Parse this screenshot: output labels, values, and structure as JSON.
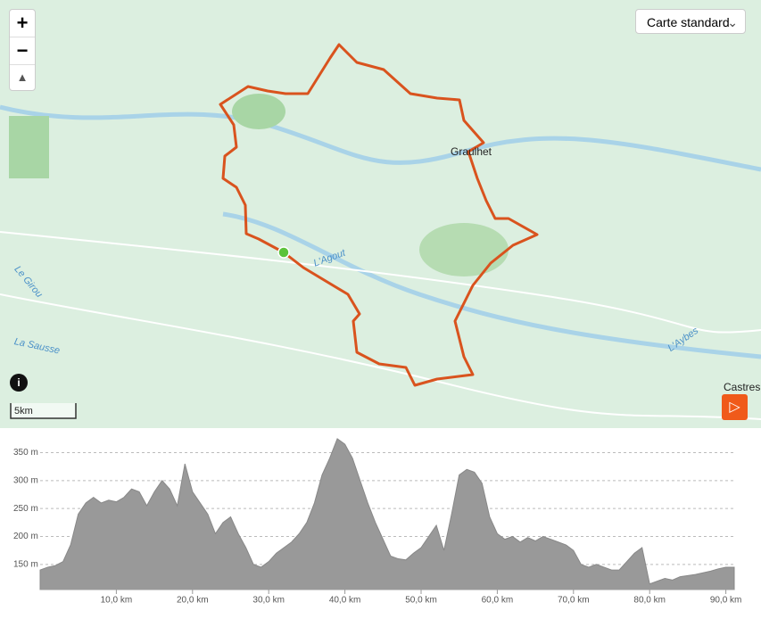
{
  "map": {
    "layer_selector": "Carte standard",
    "zoom_in": "+",
    "zoom_out": "−",
    "scale": "5km",
    "places": [
      "Graulhet",
      "Castres"
    ],
    "rivers": [
      "Le Girou",
      "La Sausse",
      "L'Agout",
      "L'Aybes"
    ]
  },
  "chart_data": {
    "type": "area",
    "color": "#999999",
    "x": [
      0,
      1,
      2,
      3,
      4,
      5,
      6,
      7,
      8,
      9,
      10,
      11,
      12,
      13,
      14,
      15,
      16,
      17,
      18,
      19,
      20,
      21,
      22,
      23,
      24,
      25,
      26,
      27,
      28,
      29,
      30,
      31,
      32,
      33,
      34,
      35,
      36,
      37,
      38,
      39,
      40,
      41,
      42,
      43,
      44,
      45,
      46,
      47,
      48,
      49,
      50,
      51,
      52,
      53,
      54,
      55,
      56,
      57,
      58,
      59,
      60,
      61,
      62,
      63,
      64,
      65,
      66,
      67,
      68,
      69,
      70,
      71,
      72,
      73,
      74,
      75,
      76,
      77,
      78,
      79,
      80,
      81,
      82,
      83,
      84,
      85,
      86,
      87,
      88,
      89,
      90,
      91.1
    ],
    "values": [
      140,
      145,
      148,
      155,
      185,
      240,
      260,
      270,
      260,
      265,
      262,
      270,
      285,
      280,
      255,
      280,
      300,
      285,
      255,
      330,
      280,
      260,
      240,
      205,
      225,
      235,
      205,
      180,
      150,
      145,
      155,
      170,
      180,
      190,
      205,
      225,
      260,
      310,
      340,
      375,
      365,
      340,
      300,
      260,
      225,
      195,
      165,
      160,
      158,
      170,
      180,
      200,
      220,
      175,
      240,
      310,
      320,
      315,
      295,
      235,
      205,
      195,
      200,
      190,
      198,
      192,
      200,
      195,
      190,
      185,
      175,
      150,
      145,
      150,
      145,
      140,
      140,
      155,
      170,
      180,
      115,
      120,
      125,
      122,
      128,
      130,
      132,
      135,
      138,
      142,
      145,
      145
    ],
    "xlim": [
      0,
      91.1
    ],
    "ylim": [
      105,
      378
    ],
    "xticks": [
      {
        "value": 10,
        "label": "10,0 km"
      },
      {
        "value": 20,
        "label": "20,0 km"
      },
      {
        "value": 30,
        "label": "30,0 km"
      },
      {
        "value": 40,
        "label": "40,0 km"
      },
      {
        "value": 50,
        "label": "50,0 km"
      },
      {
        "value": 60,
        "label": "60,0 km"
      },
      {
        "value": 70,
        "label": "70,0 km"
      },
      {
        "value": 80,
        "label": "80,0 km"
      },
      {
        "value": 90,
        "label": "90,0 km"
      }
    ],
    "yticks": [
      {
        "value": 150,
        "label": "150 m"
      },
      {
        "value": 200,
        "label": "200 m"
      },
      {
        "value": 250,
        "label": "250 m"
      },
      {
        "value": 300,
        "label": "300 m"
      },
      {
        "value": 350,
        "label": "350 m"
      }
    ],
    "grid": true
  }
}
